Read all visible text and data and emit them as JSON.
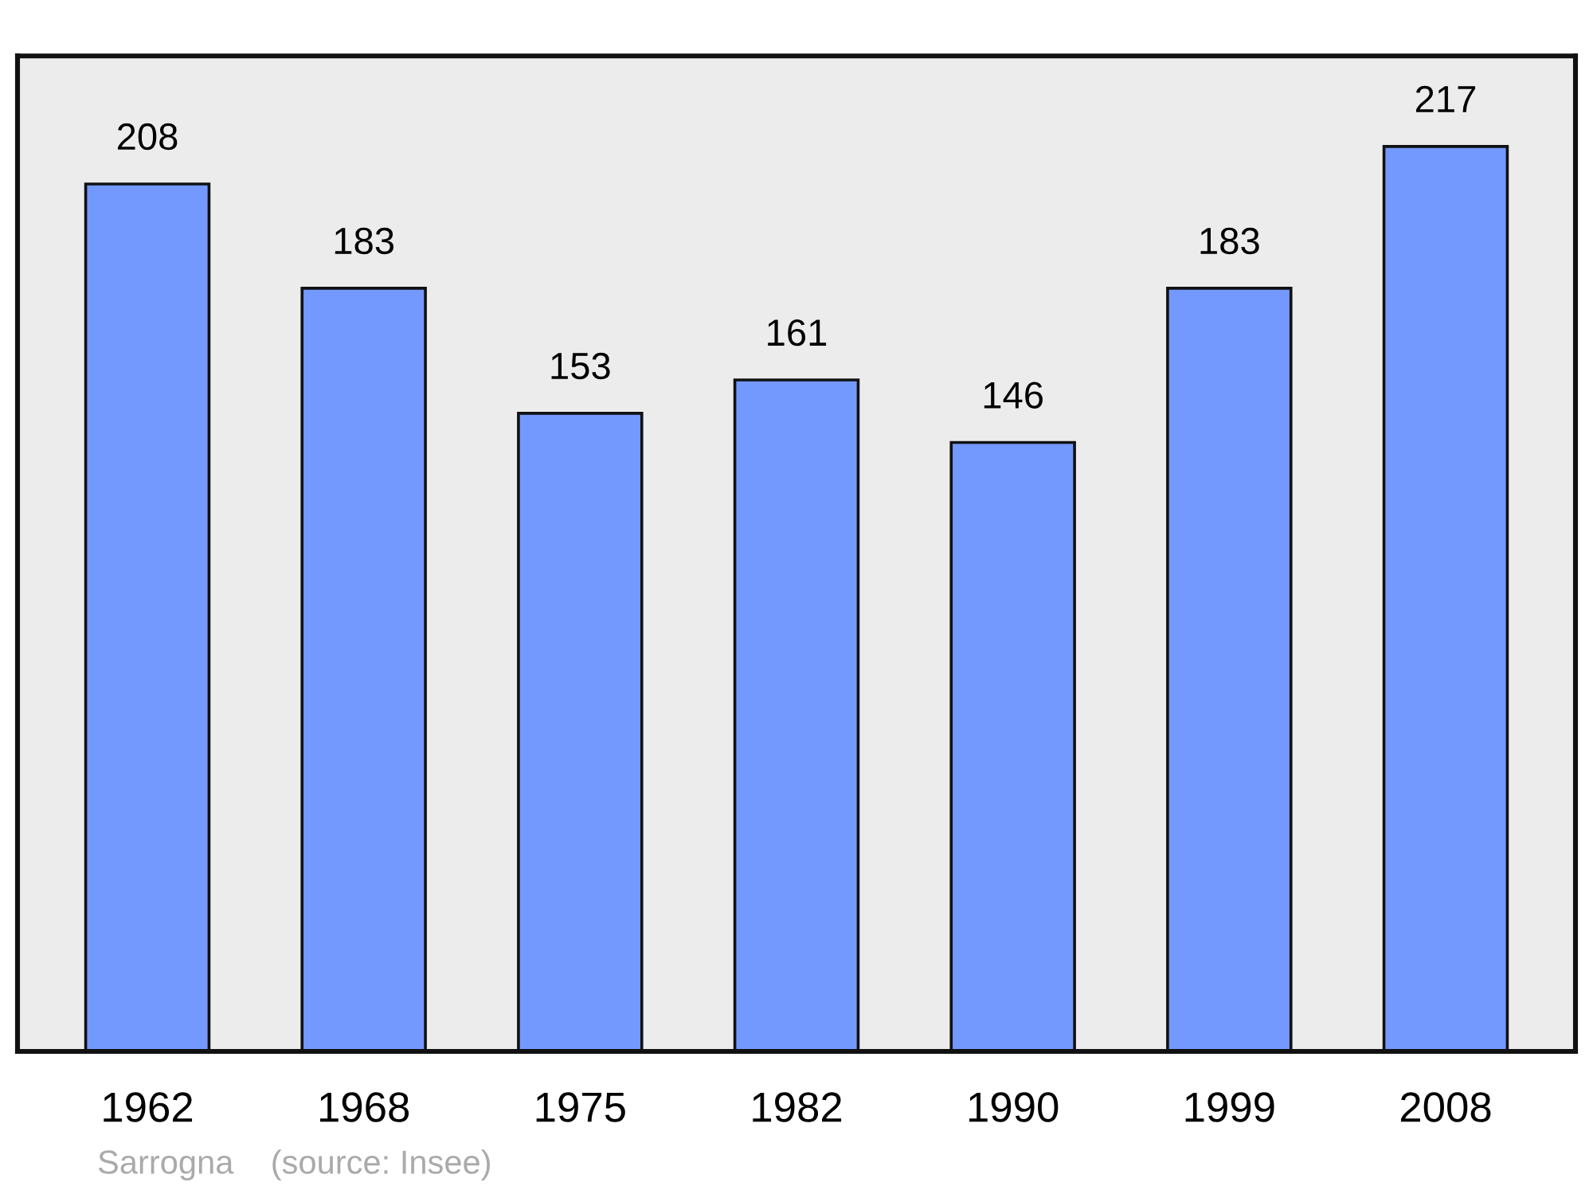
{
  "chart_data": {
    "type": "bar",
    "categories": [
      "1962",
      "1968",
      "1975",
      "1982",
      "1990",
      "1999",
      "2008"
    ],
    "values": [
      208,
      183,
      153,
      161,
      146,
      183,
      217
    ],
    "color": "#7399ff",
    "data_labels": true,
    "grid": false,
    "legend": false,
    "tick_labels": "x",
    "annotations": [
      "Sarrogna    (source: Insee)"
    ]
  }
}
